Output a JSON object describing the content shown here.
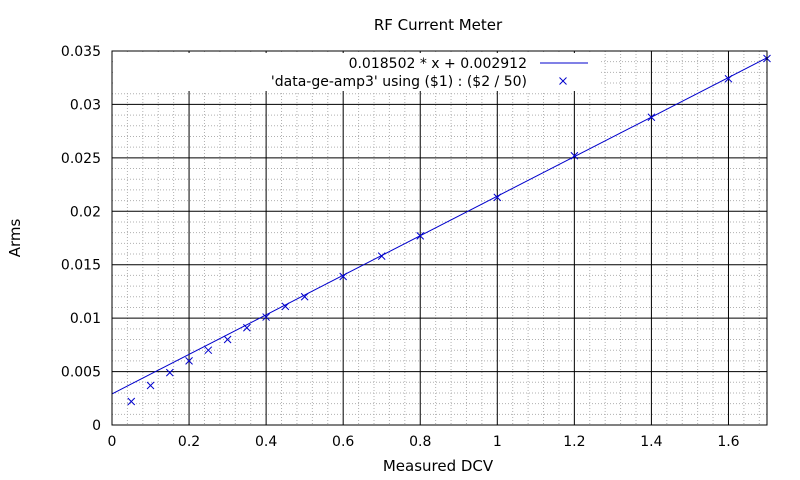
{
  "chart_data": {
    "type": "scatter",
    "title": "RF Current Meter",
    "xlabel": "Measured DCV",
    "ylabel": "Arms",
    "xlim": [
      0,
      1.7
    ],
    "ylim": [
      0,
      0.035
    ],
    "x_ticks": [
      0,
      0.2,
      0.4,
      0.6,
      0.8,
      1,
      1.2,
      1.4,
      1.6
    ],
    "x_tick_labels": [
      "0",
      "0.2",
      "0.4",
      "0.6",
      "0.8",
      "1",
      "1.2",
      "1.4",
      "1.6"
    ],
    "y_ticks": [
      0,
      0.005,
      0.01,
      0.015,
      0.02,
      0.025,
      0.03,
      0.035
    ],
    "y_tick_labels": [
      "0",
      "0.005",
      "0.01",
      "0.015",
      "0.02",
      "0.025",
      "0.03",
      "0.035"
    ],
    "grid": true,
    "minor_grid": true,
    "legend_position": "top-right",
    "series": [
      {
        "name": "0.018502 * x + 0.002912",
        "kind": "line",
        "slope": 0.018502,
        "intercept": 0.002912,
        "color": "#0000cc"
      },
      {
        "name": "'data-ge-amp3' using ($1) : ($2 / 50)",
        "kind": "points",
        "marker": "x",
        "color": "#0000cc",
        "x": [
          0.05,
          0.1,
          0.15,
          0.2,
          0.25,
          0.3,
          0.35,
          0.4,
          0.45,
          0.5,
          0.6,
          0.7,
          0.8,
          1.0,
          1.2,
          1.4,
          1.6,
          1.7
        ],
        "y": [
          0.0022,
          0.0037,
          0.0049,
          0.006,
          0.007,
          0.008,
          0.0091,
          0.0101,
          0.0111,
          0.012,
          0.0139,
          0.0158,
          0.0177,
          0.0213,
          0.0252,
          0.0288,
          0.0324,
          0.0343
        ]
      }
    ]
  }
}
